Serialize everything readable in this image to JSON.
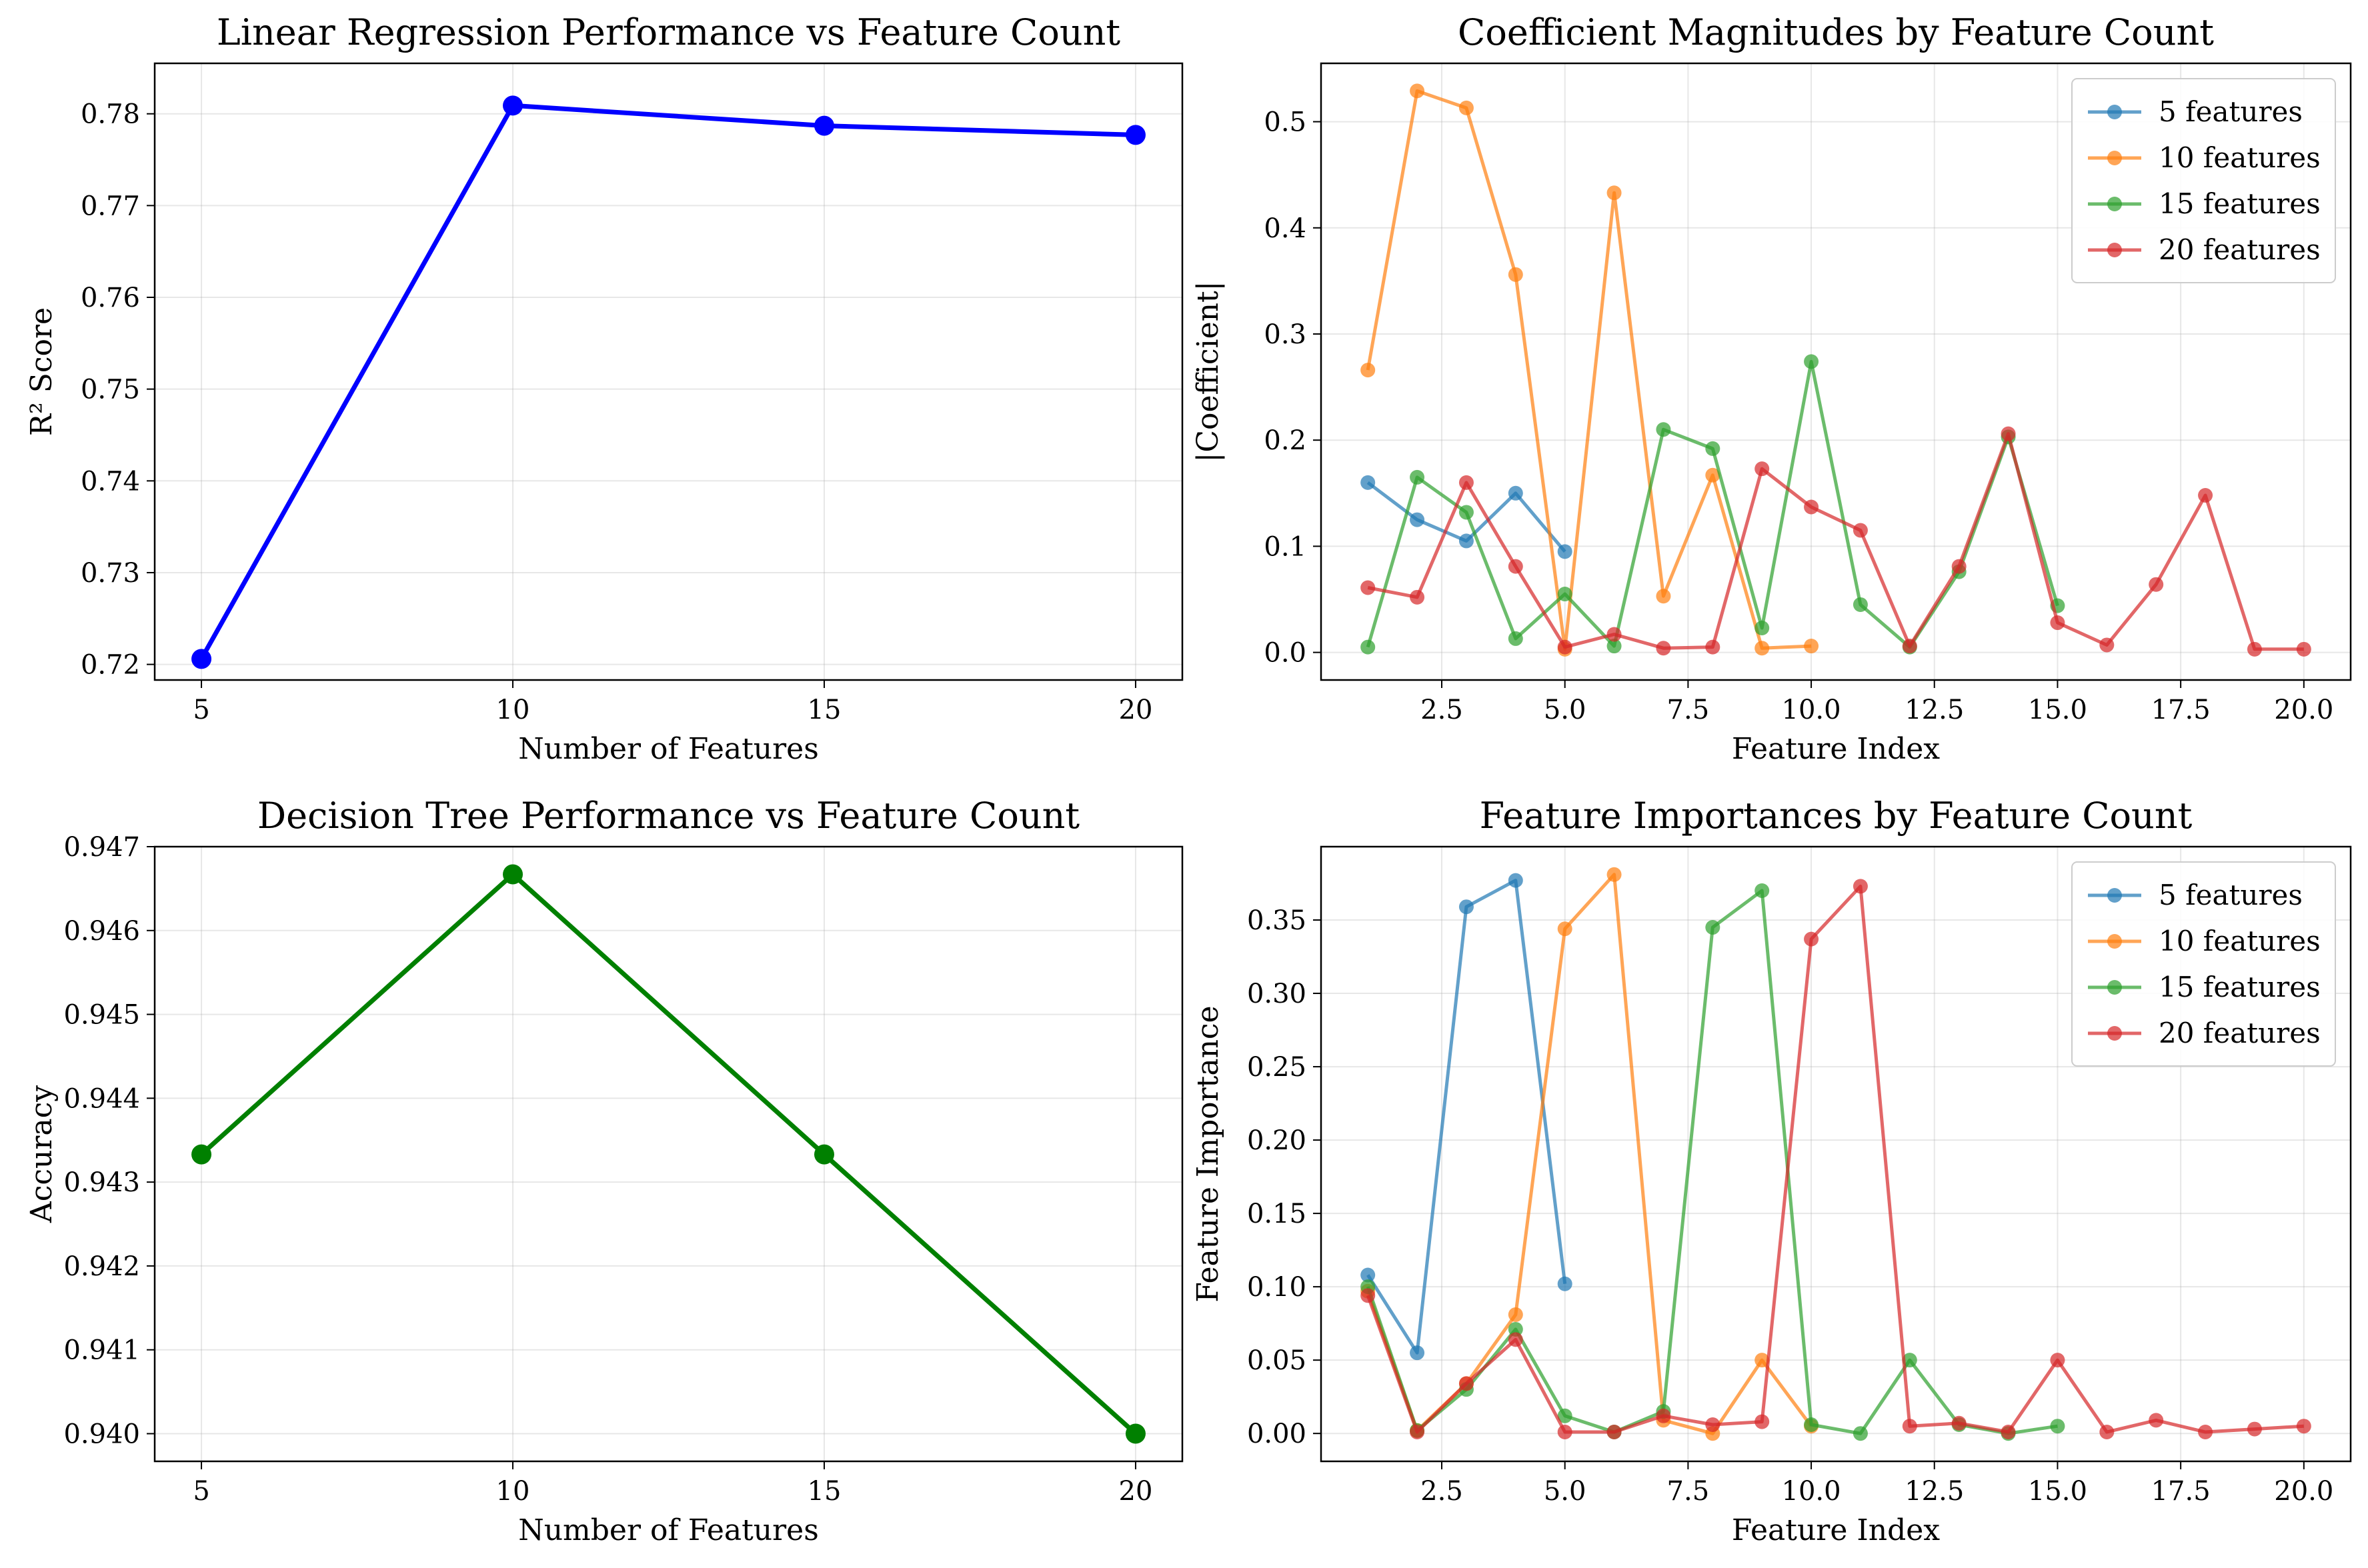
{
  "chart_data": [
    {
      "type": "line",
      "title": "Linear Regression Performance vs Feature Count",
      "xlabel": "Number of Features",
      "ylabel": "R² Score",
      "x": [
        5,
        10,
        15,
        20
      ],
      "series": [
        {
          "values": [
            0.7206,
            0.7809,
            0.7787,
            0.7777
          ],
          "color": "#0000ff"
        }
      ],
      "xlim": [
        4.25,
        20.75
      ],
      "ylim": [
        0.7183,
        0.7855
      ],
      "xticks": [
        5,
        10,
        15,
        20
      ],
      "xtick_labels": [
        "5",
        "10",
        "15",
        "20"
      ],
      "yticks": [
        0.72,
        0.73,
        0.74,
        0.75,
        0.76,
        0.77,
        0.78
      ],
      "ytick_labels": [
        "0.72",
        "0.73",
        "0.74",
        "0.75",
        "0.76",
        "0.77",
        "0.78"
      ],
      "grid": true
    },
    {
      "type": "line",
      "title": "Coefficient Magnitudes by Feature Count",
      "xlabel": "Feature Index",
      "ylabel": "|Coefficient|",
      "xlim": [
        0.05,
        20.95
      ],
      "ylim": [
        -0.026,
        0.555
      ],
      "xticks": [
        2.5,
        5.0,
        7.5,
        10.0,
        12.5,
        15.0,
        17.5,
        20.0
      ],
      "xtick_labels": [
        "2.5",
        "5.0",
        "7.5",
        "10.0",
        "12.5",
        "15.0",
        "17.5",
        "20.0"
      ],
      "yticks": [
        0.0,
        0.1,
        0.2,
        0.3,
        0.4,
        0.5
      ],
      "ytick_labels": [
        "0.0",
        "0.1",
        "0.2",
        "0.3",
        "0.4",
        "0.5"
      ],
      "grid": true,
      "legend": "top-right",
      "series": [
        {
          "name": "5 features",
          "color": "#1f77b4",
          "x": [
            1,
            2,
            3,
            4,
            5
          ],
          "values": [
            0.16,
            0.125,
            0.105,
            0.15,
            0.095
          ]
        },
        {
          "name": "10 features",
          "color": "#ff7f0e",
          "x": [
            1,
            2,
            3,
            4,
            5,
            6,
            7,
            8,
            9,
            10
          ],
          "values": [
            0.266,
            0.529,
            0.513,
            0.356,
            0.003,
            0.433,
            0.053,
            0.167,
            0.004,
            0.006
          ]
        },
        {
          "name": "15 features",
          "color": "#2ca02c",
          "x": [
            1,
            2,
            3,
            4,
            5,
            6,
            7,
            8,
            9,
            10,
            11,
            12,
            13,
            14,
            15
          ],
          "values": [
            0.005,
            0.165,
            0.132,
            0.013,
            0.055,
            0.006,
            0.21,
            0.192,
            0.023,
            0.274,
            0.045,
            0.005,
            0.076,
            0.203,
            0.044
          ]
        },
        {
          "name": "20 features",
          "color": "#d62728",
          "x": [
            1,
            2,
            3,
            4,
            5,
            6,
            7,
            8,
            9,
            10,
            11,
            12,
            13,
            14,
            15,
            16,
            17,
            18,
            19,
            20
          ],
          "values": [
            0.061,
            0.052,
            0.16,
            0.081,
            0.005,
            0.017,
            0.004,
            0.005,
            0.173,
            0.137,
            0.115,
            0.006,
            0.081,
            0.206,
            0.028,
            0.007,
            0.064,
            0.148,
            0.003,
            0.003
          ]
        }
      ]
    },
    {
      "type": "line",
      "title": "Decision Tree Performance vs Feature Count",
      "xlabel": "Number of Features",
      "ylabel": "Accuracy",
      "x": [
        5,
        10,
        15,
        20
      ],
      "series": [
        {
          "values": [
            0.94333,
            0.94667,
            0.94333,
            0.94
          ],
          "color": "#008000"
        }
      ],
      "xlim": [
        4.25,
        20.75
      ],
      "ylim": [
        0.93967,
        0.947
      ],
      "xticks": [
        5,
        10,
        15,
        20
      ],
      "xtick_labels": [
        "5",
        "10",
        "15",
        "20"
      ],
      "yticks": [
        0.94,
        0.941,
        0.942,
        0.943,
        0.944,
        0.945,
        0.946,
        0.947
      ],
      "ytick_labels": [
        "0.940",
        "0.941",
        "0.942",
        "0.943",
        "0.944",
        "0.945",
        "0.946",
        "0.947"
      ],
      "grid": true
    },
    {
      "type": "line",
      "title": "Feature Importances by Feature Count",
      "xlabel": "Feature Index",
      "ylabel": "Feature Importance",
      "xlim": [
        0.05,
        20.95
      ],
      "ylim": [
        -0.019,
        0.4
      ],
      "xticks": [
        2.5,
        5.0,
        7.5,
        10.0,
        12.5,
        15.0,
        17.5,
        20.0
      ],
      "xtick_labels": [
        "2.5",
        "5.0",
        "7.5",
        "10.0",
        "12.5",
        "15.0",
        "17.5",
        "20.0"
      ],
      "yticks": [
        0.0,
        0.05,
        0.1,
        0.15,
        0.2,
        0.25,
        0.3,
        0.35
      ],
      "ytick_labels": [
        "0.00",
        "0.05",
        "0.10",
        "0.15",
        "0.20",
        "0.25",
        "0.30",
        "0.35"
      ],
      "grid": true,
      "legend": "top-right",
      "series": [
        {
          "name": "5 features",
          "color": "#1f77b4",
          "x": [
            1,
            2,
            3,
            4,
            5
          ],
          "values": [
            0.108,
            0.055,
            0.359,
            0.377,
            0.102
          ]
        },
        {
          "name": "10 features",
          "color": "#ff7f0e",
          "x": [
            1,
            2,
            3,
            4,
            5,
            6,
            7,
            8,
            9,
            10
          ],
          "values": [
            0.097,
            0.002,
            0.034,
            0.081,
            0.344,
            0.381,
            0.009,
            0.0,
            0.05,
            0.005
          ]
        },
        {
          "name": "15 features",
          "color": "#2ca02c",
          "x": [
            1,
            2,
            3,
            4,
            5,
            6,
            7,
            8,
            9,
            10,
            11,
            12,
            13,
            14,
            15
          ],
          "values": [
            0.1,
            0.002,
            0.03,
            0.071,
            0.012,
            0.001,
            0.015,
            0.345,
            0.37,
            0.006,
            0.0,
            0.05,
            0.006,
            0.0,
            0.005
          ]
        },
        {
          "name": "20 features",
          "color": "#d62728",
          "x": [
            1,
            2,
            3,
            4,
            5,
            6,
            7,
            8,
            9,
            10,
            11,
            12,
            13,
            14,
            15,
            16,
            17,
            18,
            19,
            20
          ],
          "values": [
            0.094,
            0.001,
            0.034,
            0.064,
            0.001,
            0.001,
            0.012,
            0.006,
            0.008,
            0.337,
            0.373,
            0.005,
            0.007,
            0.001,
            0.05,
            0.001,
            0.009,
            0.001,
            0.003,
            0.005
          ]
        }
      ]
    }
  ]
}
